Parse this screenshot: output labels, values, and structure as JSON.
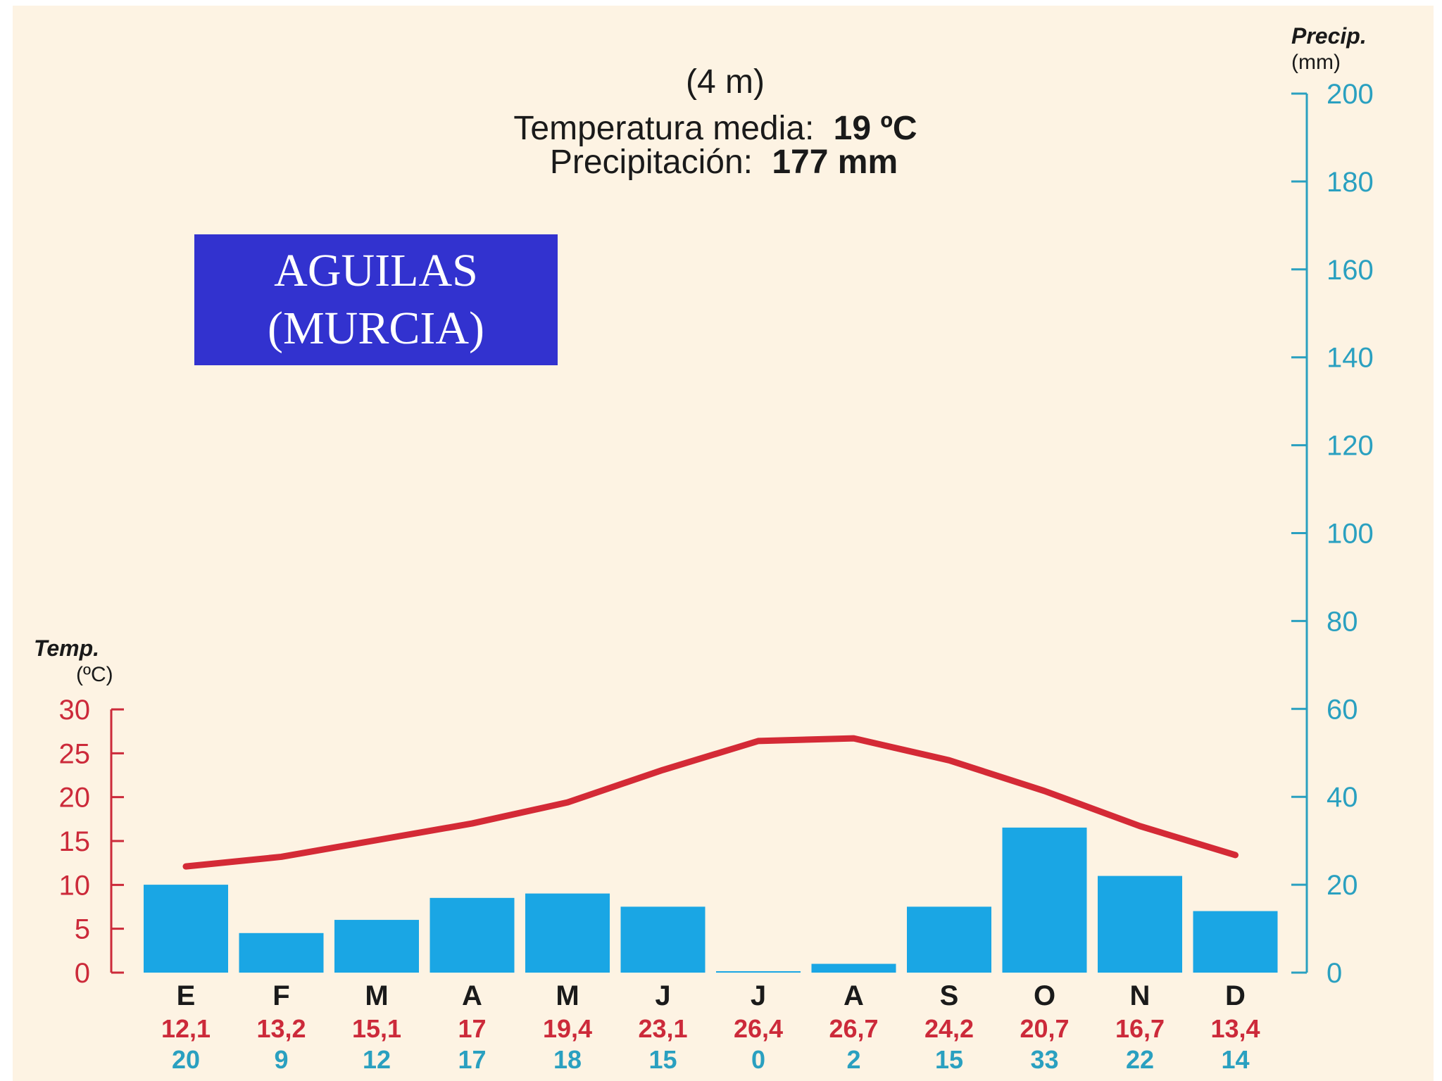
{
  "station": {
    "line1": "AGUILAS",
    "line2": "(MURCIA)"
  },
  "header": {
    "altitude": "(4 m)",
    "temp_label": "Temperatura media:",
    "temp_value": "19 ºC",
    "precip_label": "Precipitación:",
    "precip_value": "177 mm"
  },
  "colors": {
    "background": "#fdf3e3",
    "temperature": "#d42a36",
    "precipitation": "#1aa6e4",
    "precip_axis": "#2aa0c0",
    "temp_axis": "#cc2a3a",
    "station_box": "#3232cf"
  },
  "chart_data": {
    "type": "bar+line",
    "categories": [
      "E",
      "F",
      "M",
      "A",
      "M",
      "J",
      "J",
      "A",
      "S",
      "O",
      "N",
      "D"
    ],
    "temp_axis": {
      "title": "Temp.",
      "unit": "(ºC)",
      "range": [
        0,
        30
      ],
      "ticks": [
        "0",
        "5",
        "10",
        "15",
        "20",
        "25",
        "30"
      ],
      "side": "left"
    },
    "precip_axis": {
      "title": "Precip.",
      "unit": "(mm)",
      "range": [
        0,
        200
      ],
      "ticks": [
        "0",
        "20",
        "40",
        "60",
        "80",
        "100",
        "120",
        "140",
        "160",
        "180",
        "200"
      ],
      "side": "right"
    },
    "temperature": {
      "type": "line",
      "values": [
        12.1,
        13.2,
        15.1,
        17,
        19.4,
        23.1,
        26.4,
        26.7,
        24.2,
        20.7,
        16.7,
        13.4
      ],
      "labels": [
        "12,1",
        "13,2",
        "15,1",
        "17",
        "19,4",
        "23,1",
        "26,4",
        "26,7",
        "24,2",
        "20,7",
        "16,7",
        "13,4"
      ]
    },
    "precipitation": {
      "type": "bar",
      "values": [
        20,
        9,
        12,
        17,
        18,
        15,
        0,
        2,
        15,
        33,
        22,
        14
      ],
      "labels": [
        "20",
        "9",
        "12",
        "17",
        "18",
        "15",
        "0",
        "2",
        "15",
        "33",
        "22",
        "14"
      ]
    },
    "grid": false
  }
}
